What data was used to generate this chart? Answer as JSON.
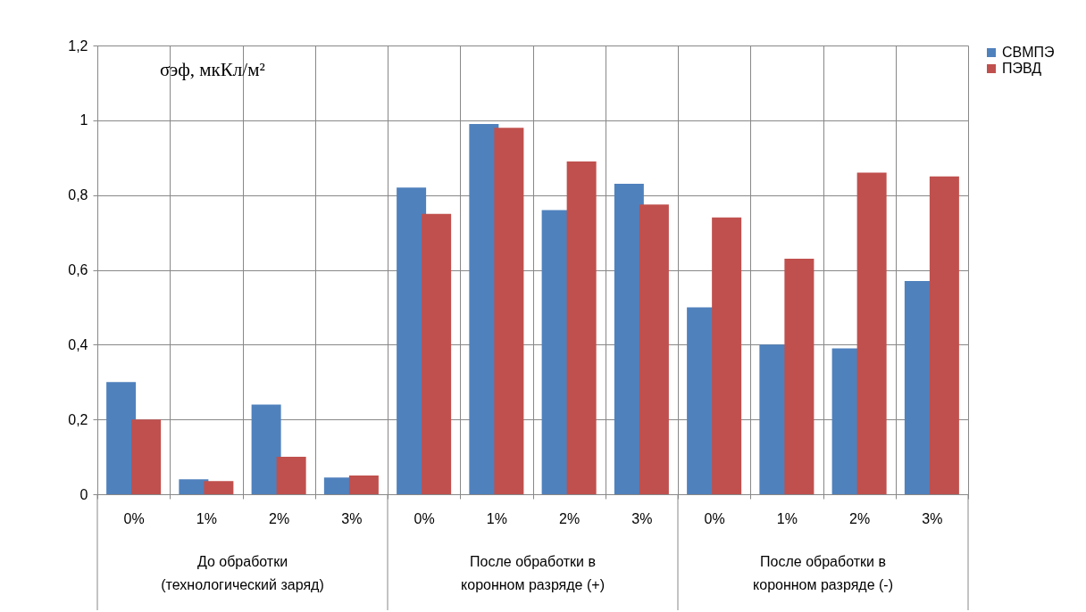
{
  "chart_data": {
    "type": "bar",
    "ylabel": "σэф, мкКл/м²",
    "categories": [
      "0%",
      "1%",
      "2%",
      "3%",
      "0%",
      "1%",
      "2%",
      "3%",
      "0%",
      "1%",
      "2%",
      "3%"
    ],
    "series": [
      {
        "name": "СВМПЭ",
        "color": "#4f81bd",
        "values": [
          0.3,
          0.04,
          0.24,
          0.045,
          0.82,
          0.99,
          0.76,
          0.83,
          0.5,
          0.4,
          0.39,
          0.57
        ]
      },
      {
        "name": "ПЭВД",
        "color": "#c0504d",
        "values": [
          0.2,
          0.035,
          0.1,
          0.05,
          0.75,
          0.98,
          0.89,
          0.775,
          0.74,
          0.63,
          0.86,
          0.85
        ]
      }
    ],
    "annotations": [
      "До обработки\n(технологический заряд)",
      "После обработки в\nкоронном разряде (+)",
      "После обработки в\nкоронном разряде (-)"
    ],
    "ylim": [
      0,
      1.2
    ],
    "yticks": [
      {
        "value": 0,
        "label": "0"
      },
      {
        "value": 0.2,
        "label": "0,2"
      },
      {
        "value": 0.4,
        "label": "0,4"
      },
      {
        "value": 0.6,
        "label": "0,6"
      },
      {
        "value": 0.8,
        "label": "0,8"
      },
      {
        "value": 1,
        "label": "1"
      },
      {
        "value": 1.2,
        "label": "1,2"
      }
    ],
    "grid": "y",
    "legend": "right"
  }
}
